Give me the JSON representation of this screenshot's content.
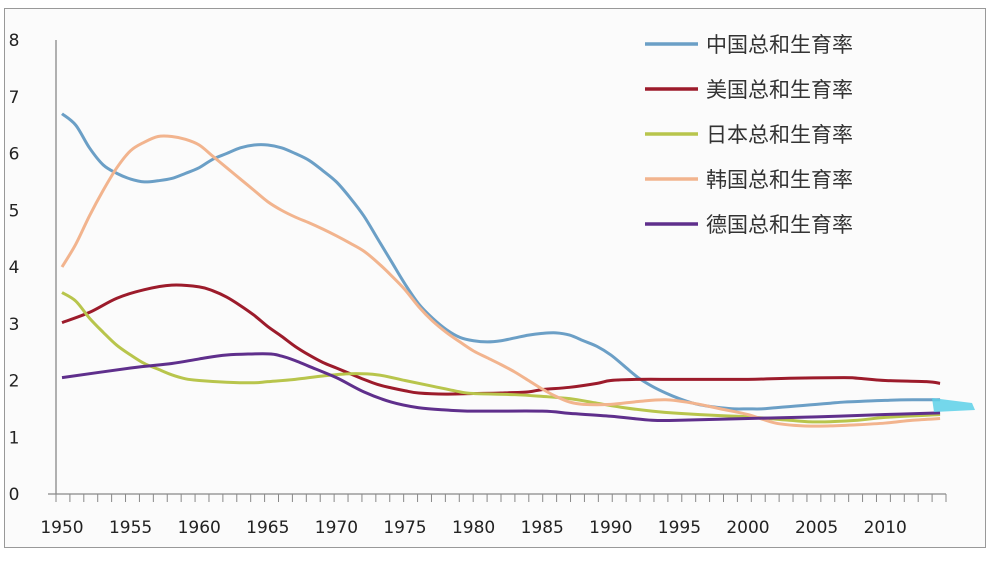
{
  "chart_data": {
    "type": "line",
    "title": "",
    "xlabel": "",
    "ylabel": "",
    "xlim": [
      1950,
      2014
    ],
    "ylim": [
      0,
      8
    ],
    "x_ticks": [
      "1950",
      "1955",
      "1960",
      "1965",
      "1970",
      "1975",
      "1980",
      "1985",
      "1990",
      "1995",
      "2000",
      "2005",
      "2010"
    ],
    "y_ticks": [
      "0",
      "1",
      "2",
      "3",
      "4",
      "5",
      "6",
      "7",
      "8"
    ],
    "grid": false,
    "legend_position": "top-right",
    "series": [
      {
        "name": "中国总和生育率",
        "color": "#6b9fc6",
        "points": [
          [
            1950,
            6.7
          ],
          [
            1951,
            6.5
          ],
          [
            1952,
            6.1
          ],
          [
            1953,
            5.8
          ],
          [
            1954,
            5.65
          ],
          [
            1955,
            5.55
          ],
          [
            1956,
            5.5
          ],
          [
            1957,
            5.52
          ],
          [
            1958,
            5.56
          ],
          [
            1959,
            5.65
          ],
          [
            1960,
            5.75
          ],
          [
            1961,
            5.9
          ],
          [
            1962,
            6.0
          ],
          [
            1963,
            6.1
          ],
          [
            1964,
            6.15
          ],
          [
            1965,
            6.15
          ],
          [
            1966,
            6.1
          ],
          [
            1967,
            6.0
          ],
          [
            1968,
            5.88
          ],
          [
            1969,
            5.7
          ],
          [
            1970,
            5.5
          ],
          [
            1971,
            5.22
          ],
          [
            1972,
            4.9
          ],
          [
            1973,
            4.5
          ],
          [
            1974,
            4.1
          ],
          [
            1975,
            3.7
          ],
          [
            1976,
            3.35
          ],
          [
            1977,
            3.1
          ],
          [
            1978,
            2.9
          ],
          [
            1979,
            2.76
          ],
          [
            1980,
            2.7
          ],
          [
            1981,
            2.68
          ],
          [
            1982,
            2.7
          ],
          [
            1983,
            2.75
          ],
          [
            1984,
            2.8
          ],
          [
            1985,
            2.83
          ],
          [
            1986,
            2.84
          ],
          [
            1987,
            2.8
          ],
          [
            1988,
            2.7
          ],
          [
            1989,
            2.6
          ],
          [
            1990,
            2.45
          ],
          [
            1991,
            2.25
          ],
          [
            1992,
            2.05
          ],
          [
            1993,
            1.9
          ],
          [
            1994,
            1.78
          ],
          [
            1995,
            1.68
          ],
          [
            1996,
            1.6
          ],
          [
            1997,
            1.55
          ],
          [
            1998,
            1.52
          ],
          [
            1999,
            1.5
          ],
          [
            2000,
            1.5
          ],
          [
            2001,
            1.5
          ],
          [
            2002,
            1.52
          ],
          [
            2003,
            1.54
          ],
          [
            2004,
            1.56
          ],
          [
            2005,
            1.58
          ],
          [
            2006,
            1.6
          ],
          [
            2007,
            1.62
          ],
          [
            2008,
            1.63
          ],
          [
            2010,
            1.65
          ],
          [
            2012,
            1.66
          ],
          [
            2014,
            1.66
          ]
        ]
      },
      {
        "name": "美国总和生育率",
        "color": "#9c1b2b",
        "points": [
          [
            1950,
            3.02
          ],
          [
            1952,
            3.2
          ],
          [
            1954,
            3.45
          ],
          [
            1956,
            3.6
          ],
          [
            1958,
            3.68
          ],
          [
            1960,
            3.65
          ],
          [
            1961,
            3.58
          ],
          [
            1962,
            3.47
          ],
          [
            1963,
            3.32
          ],
          [
            1964,
            3.15
          ],
          [
            1965,
            2.95
          ],
          [
            1966,
            2.78
          ],
          [
            1967,
            2.6
          ],
          [
            1968,
            2.45
          ],
          [
            1969,
            2.32
          ],
          [
            1970,
            2.22
          ],
          [
            1971,
            2.12
          ],
          [
            1972,
            2.02
          ],
          [
            1973,
            1.93
          ],
          [
            1974,
            1.87
          ],
          [
            1975,
            1.82
          ],
          [
            1976,
            1.78
          ],
          [
            1978,
            1.76
          ],
          [
            1980,
            1.77
          ],
          [
            1982,
            1.78
          ],
          [
            1984,
            1.8
          ],
          [
            1985,
            1.84
          ],
          [
            1987,
            1.88
          ],
          [
            1989,
            1.95
          ],
          [
            1990,
            2.0
          ],
          [
            1992,
            2.02
          ],
          [
            1995,
            2.02
          ],
          [
            2000,
            2.02
          ],
          [
            2003,
            2.04
          ],
          [
            2007,
            2.05
          ],
          [
            2008,
            2.04
          ],
          [
            2010,
            2.0
          ],
          [
            2013,
            1.98
          ],
          [
            2014,
            1.95
          ]
        ]
      },
      {
        "name": "日本总和生育率",
        "color": "#b8c54c",
        "points": [
          [
            1950,
            3.55
          ],
          [
            1951,
            3.4
          ],
          [
            1952,
            3.1
          ],
          [
            1953,
            2.85
          ],
          [
            1954,
            2.62
          ],
          [
            1955,
            2.45
          ],
          [
            1956,
            2.3
          ],
          [
            1957,
            2.2
          ],
          [
            1958,
            2.1
          ],
          [
            1959,
            2.03
          ],
          [
            1960,
            2.0
          ],
          [
            1962,
            1.97
          ],
          [
            1964,
            1.96
          ],
          [
            1965,
            1.98
          ],
          [
            1967,
            2.02
          ],
          [
            1969,
            2.08
          ],
          [
            1971,
            2.12
          ],
          [
            1973,
            2.1
          ],
          [
            1975,
            2.0
          ],
          [
            1977,
            1.9
          ],
          [
            1979,
            1.8
          ],
          [
            1980,
            1.77
          ],
          [
            1983,
            1.75
          ],
          [
            1985,
            1.72
          ],
          [
            1987,
            1.68
          ],
          [
            1989,
            1.6
          ],
          [
            1991,
            1.52
          ],
          [
            1993,
            1.46
          ],
          [
            1995,
            1.42
          ],
          [
            1998,
            1.38
          ],
          [
            2000,
            1.36
          ],
          [
            2003,
            1.3
          ],
          [
            2005,
            1.27
          ],
          [
            2008,
            1.3
          ],
          [
            2010,
            1.35
          ],
          [
            2014,
            1.4
          ]
        ]
      },
      {
        "name": "韩国总和生育率",
        "color": "#f2b48e",
        "points": [
          [
            1950,
            4.0
          ],
          [
            1951,
            4.4
          ],
          [
            1952,
            4.9
          ],
          [
            1953,
            5.35
          ],
          [
            1954,
            5.75
          ],
          [
            1955,
            6.05
          ],
          [
            1956,
            6.2
          ],
          [
            1957,
            6.3
          ],
          [
            1958,
            6.3
          ],
          [
            1959,
            6.25
          ],
          [
            1960,
            6.15
          ],
          [
            1961,
            5.95
          ],
          [
            1962,
            5.75
          ],
          [
            1963,
            5.55
          ],
          [
            1964,
            5.35
          ],
          [
            1965,
            5.15
          ],
          [
            1966,
            5.0
          ],
          [
            1967,
            4.88
          ],
          [
            1968,
            4.78
          ],
          [
            1969,
            4.67
          ],
          [
            1970,
            4.55
          ],
          [
            1971,
            4.42
          ],
          [
            1972,
            4.28
          ],
          [
            1973,
            4.08
          ],
          [
            1974,
            3.85
          ],
          [
            1975,
            3.6
          ],
          [
            1976,
            3.3
          ],
          [
            1977,
            3.05
          ],
          [
            1978,
            2.85
          ],
          [
            1979,
            2.68
          ],
          [
            1980,
            2.52
          ],
          [
            1981,
            2.4
          ],
          [
            1982,
            2.28
          ],
          [
            1983,
            2.15
          ],
          [
            1984,
            2.0
          ],
          [
            1985,
            1.85
          ],
          [
            1986,
            1.72
          ],
          [
            1987,
            1.62
          ],
          [
            1988,
            1.58
          ],
          [
            1990,
            1.58
          ],
          [
            1992,
            1.63
          ],
          [
            1994,
            1.66
          ],
          [
            1996,
            1.6
          ],
          [
            1998,
            1.5
          ],
          [
            2000,
            1.4
          ],
          [
            2002,
            1.25
          ],
          [
            2004,
            1.2
          ],
          [
            2006,
            1.2
          ],
          [
            2008,
            1.22
          ],
          [
            2010,
            1.25
          ],
          [
            2012,
            1.3
          ],
          [
            2014,
            1.33
          ]
        ]
      },
      {
        "name": "德国总和生育率",
        "color": "#5f2f8c",
        "points": [
          [
            1950,
            2.05
          ],
          [
            1955,
            2.22
          ],
          [
            1958,
            2.3
          ],
          [
            1960,
            2.38
          ],
          [
            1962,
            2.45
          ],
          [
            1965,
            2.47
          ],
          [
            1966,
            2.43
          ],
          [
            1967,
            2.35
          ],
          [
            1968,
            2.25
          ],
          [
            1970,
            2.05
          ],
          [
            1972,
            1.8
          ],
          [
            1974,
            1.62
          ],
          [
            1976,
            1.52
          ],
          [
            1978,
            1.48
          ],
          [
            1980,
            1.46
          ],
          [
            1985,
            1.46
          ],
          [
            1987,
            1.42
          ],
          [
            1990,
            1.37
          ],
          [
            1993,
            1.3
          ],
          [
            1995,
            1.3
          ],
          [
            2000,
            1.33
          ],
          [
            2005,
            1.36
          ],
          [
            2010,
            1.4
          ],
          [
            2014,
            1.43
          ]
        ]
      }
    ]
  }
}
